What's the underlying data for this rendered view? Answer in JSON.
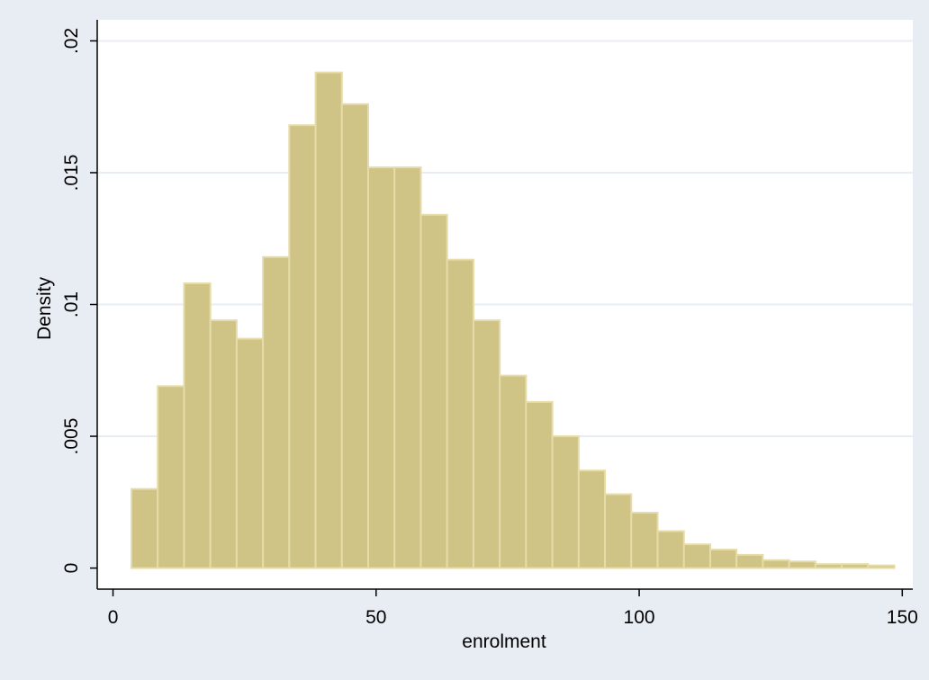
{
  "chart_data": {
    "type": "bar",
    "xlabel": "enrolment",
    "ylabel": "Density",
    "xlim": [
      -3,
      152
    ],
    "ylim": [
      -0.0008,
      0.0208
    ],
    "xticks": [
      0,
      50,
      100,
      150
    ],
    "xtick_labels": [
      "0",
      "50",
      "100",
      "150"
    ],
    "yticks": [
      0,
      0.005,
      0.01,
      0.015,
      0.02
    ],
    "ytick_labels": [
      "0",
      ".005",
      ".01",
      ".015",
      ".02"
    ],
    "grid": true,
    "bin_edges": [
      3.5,
      8.5,
      13.5,
      18.5,
      23.5,
      28.5,
      33.5,
      38.5,
      43.5,
      48.5,
      53.5,
      58.5,
      63.5,
      68.5,
      73.5,
      78.5,
      83.5,
      88.5,
      93.5,
      98.5,
      103.5,
      108.5,
      113.5,
      118.5,
      123.5,
      128.5,
      133.5,
      138.5,
      143.5,
      148.5
    ],
    "values": [
      0.003,
      0.0069,
      0.0108,
      0.0094,
      0.0087,
      0.0118,
      0.0168,
      0.0188,
      0.0176,
      0.0152,
      0.0152,
      0.0134,
      0.0117,
      0.0094,
      0.0073,
      0.0063,
      0.005,
      0.0037,
      0.0028,
      0.0021,
      0.0014,
      0.0009,
      0.0007,
      0.0005,
      0.0003,
      0.00025,
      0.00015,
      0.00015,
      0.0001
    ],
    "colors": {
      "background": "#e8edf3",
      "plot_background": "#ffffff",
      "bar_fill": "#cfc385",
      "bar_stroke": "#e6dcaa",
      "grid": "#e8edf3",
      "axis": "#000000"
    }
  }
}
